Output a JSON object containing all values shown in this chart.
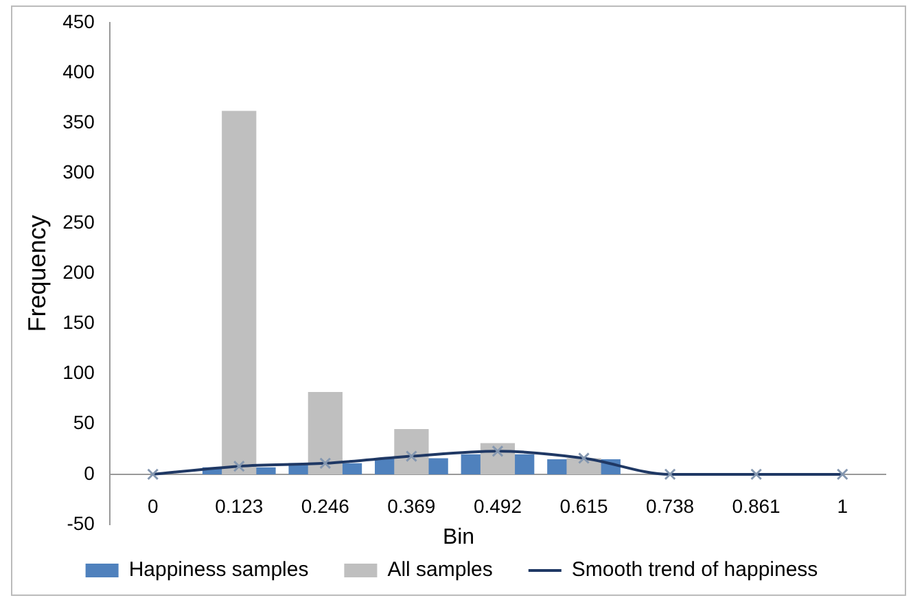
{
  "chart_data": {
    "type": "bar",
    "xlabel": "Bin",
    "ylabel": "Frequency",
    "categories": [
      "0",
      "0.123",
      "0.246",
      "0.369",
      "0.492",
      "0.615",
      "0.738",
      "0.861",
      "1"
    ],
    "series": [
      {
        "name": "Happiness samples",
        "color": "#4f81bd",
        "values": [
          0,
          7,
          11,
          16,
          20,
          15,
          0,
          0,
          0
        ]
      },
      {
        "name": "All samples",
        "color": "#bfbfbf",
        "values": [
          0,
          362,
          82,
          45,
          31,
          16,
          0,
          0,
          0
        ]
      },
      {
        "name": "Smooth trend of happiness",
        "type": "line",
        "color": "#1f3864",
        "values": [
          0,
          8,
          11,
          18,
          23,
          16,
          0,
          0,
          0
        ]
      }
    ],
    "ylim": [
      -50,
      450
    ],
    "yticks": [
      -50,
      0,
      50,
      100,
      150,
      200,
      250,
      300,
      350,
      400,
      450
    ],
    "grid": false,
    "legend": "bottom",
    "marker": "cross",
    "line_style": "solid"
  }
}
